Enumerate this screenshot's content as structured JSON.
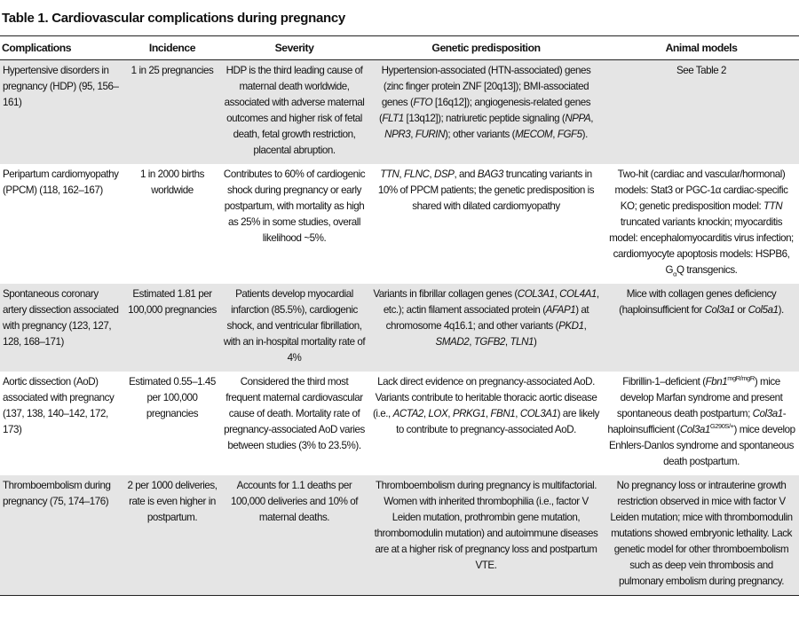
{
  "title": "Table 1. Cardiovascular complications during pregnancy",
  "colors": {
    "row_shade": "#e5e5e5",
    "rule": "#222222"
  },
  "columns": [
    "Complications",
    "Incidence",
    "Severity",
    "Genetic predisposition",
    "Animal models"
  ],
  "rows": [
    {
      "complication": [
        "Hypertensive disorders in pregnancy (HDP) (95, 156–161)"
      ],
      "incidence": [
        "1 in 25 pregnancies"
      ],
      "severity": [
        "HDP is the third leading cause of maternal death worldwide, associated with adverse maternal outcomes and higher risk of fetal death, fetal growth restriction, placental abruption."
      ],
      "genetic": [
        "Hypertension-associated (HTN-associated) genes (zinc finger protein ZNF [20q13]); BMI-associated genes (",
        {
          "i": "FTO"
        },
        " [16q12]); angiogenesis-related genes (",
        {
          "i": "FLT1"
        },
        " [13q12]); natriuretic peptide signaling (",
        {
          "i": "NPPA"
        },
        ", ",
        {
          "i": "NPR3"
        },
        ", ",
        {
          "i": "FURIN"
        },
        "); other variants (",
        {
          "i": "MECOM"
        },
        ", ",
        {
          "i": "FGF5"
        },
        ")."
      ],
      "animal": [
        "See Table 2"
      ]
    },
    {
      "complication": [
        "Peripartum cardiomyopathy (PPCM) (118, 162–167)"
      ],
      "incidence": [
        "1 in 2000 births worldwide"
      ],
      "severity": [
        "Contributes to 60% of cardiogenic shock during pregnancy or early postpartum, with mortality as high as 25% in some studies, overall likelihood ~5%."
      ],
      "genetic": [
        {
          "i": "TTN"
        },
        ", ",
        {
          "i": "FLNC"
        },
        ", ",
        {
          "i": "DSP"
        },
        ", and ",
        {
          "i": "BAG3"
        },
        " truncating variants in 10% of PPCM patients; the genetic predisposition is shared with dilated cardiomyopathy"
      ],
      "animal": [
        "Two-hit (cardiac and vascular/hormonal) models: Stat3 or PGC-1α cardiac-specific KO; genetic predisposition model: ",
        {
          "i": "TTN"
        },
        " truncated variants knockin; myocarditis model: encephalomyocarditis virus infection; cardiomyocyte apoptosis models: HSPB6, G",
        {
          "sub": "α"
        },
        "Q transgenics."
      ]
    },
    {
      "complication": [
        "Spontaneous coronary artery dissection associated with pregnancy (123, 127, 128, 168–171)"
      ],
      "incidence": [
        "Estimated 1.81 per 100,000 pregnancies"
      ],
      "severity": [
        "Patients develop myocardial infarction (85.5%), cardiogenic shock, and ventricular fibrillation, with an in-hospital mortality rate of 4%"
      ],
      "genetic": [
        "Variants in fibrillar collagen genes (",
        {
          "i": "COL3A1"
        },
        ", ",
        {
          "i": "COL4A1"
        },
        ", etc.); actin filament associated protein (",
        {
          "i": "AFAP1"
        },
        ") at chromosome 4q16.1; and other variants (",
        {
          "i": "PKD1"
        },
        ", ",
        {
          "i": "SMAD2"
        },
        ", ",
        {
          "i": "TGFB2"
        },
        ", ",
        {
          "i": "TLN1"
        },
        ")"
      ],
      "animal": [
        "Mice with collagen genes deficiency (haploinsufficient for ",
        {
          "i": "Col3a1"
        },
        " or ",
        {
          "i": "Col5a1"
        },
        ")."
      ]
    },
    {
      "complication": [
        "Aortic dissection (AoD) associated with pregnancy (137, 138, 140–142, 172, 173)"
      ],
      "incidence": [
        "Estimated 0.55–1.45 per 100,000 pregnancies"
      ],
      "severity": [
        "Considered the third most frequent maternal cardiovascular cause of death. Mortality rate of pregnancy-associated AoD varies between studies (3% to 23.5%)."
      ],
      "genetic": [
        "Lack direct evidence on pregnancy-associated AoD. Variants contribute to heritable thoracic aortic disease (i.e., ",
        {
          "i": "ACTA2"
        },
        ", ",
        {
          "i": "LOX"
        },
        ", ",
        {
          "i": "PRKG1"
        },
        ", ",
        {
          "i": "FBN1"
        },
        ", ",
        {
          "i": "COL3A1"
        },
        ") are likely to contribute to pregnancy-associated AoD."
      ],
      "animal": [
        "Fibrillin-1–deficient (",
        {
          "i": "Fbn1"
        },
        {
          "sup": "mgR/mgR"
        },
        ") mice develop Marfan syndrome and present spontaneous death postpartum; ",
        {
          "i": "Col3a1"
        },
        "-haploinsufficient (",
        {
          "i": "Col3a1"
        },
        {
          "sup": "G290S/+"
        },
        ") mice develop Enhlers-Danlos syndrome and spontaneous death postpartum."
      ]
    },
    {
      "complication": [
        "Thromboembolism during pregnancy (75, 174–176)"
      ],
      "incidence": [
        "2 per 1000 deliveries, rate is even higher in postpartum."
      ],
      "severity": [
        "Accounts for 1.1 deaths per 100,000 deliveries and 10% of maternal deaths."
      ],
      "genetic": [
        "Thromboembolism during pregnancy is multifactorial. Women with inherited thrombophilia (i.e., factor V Leiden mutation, prothrombin gene mutation, thrombomodulin mutation) and autoimmune diseases are at a higher risk of pregnancy loss and postpartum VTE."
      ],
      "animal": [
        "No pregnancy loss or intrauterine growth restriction observed in mice with factor V Leiden mutation; mice with thrombomodulin mutations showed embryonic lethality. Lack genetic model for other thromboembolism such as deep vein thrombosis and pulmonary embolism during pregnancy."
      ]
    }
  ]
}
